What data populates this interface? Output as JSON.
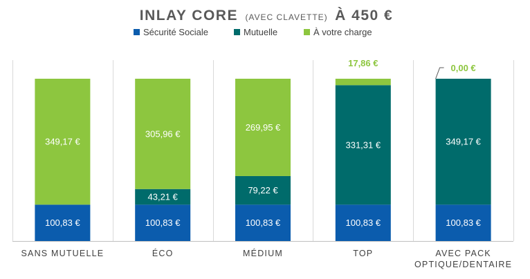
{
  "title": {
    "main": "INLAY CORE",
    "sub": "(AVEC CLAVETTE)",
    "suffix": "À 450 €"
  },
  "colors": {
    "secu": "#0B5CAD",
    "mutuelle": "#006B6B",
    "charge": "#8DC63F",
    "gridline": "#D9D9D9",
    "axis": "#BFBFBF"
  },
  "chart_data": {
    "type": "bar",
    "stacked": true,
    "categories": [
      [
        "SANS MUTUELLE"
      ],
      [
        "ÉCO"
      ],
      [
        "MÉDIUM"
      ],
      [
        "TOP"
      ],
      [
        "AVEC PACK",
        "OPTIQUE/DENTAIRE"
      ]
    ],
    "series": [
      {
        "name": "Sécurité Sociale",
        "values": [
          100.83,
          100.83,
          100.83,
          100.83,
          100.83
        ],
        "labels": [
          "100,83 €",
          "100,83 €",
          "100,83 €",
          "100,83 €",
          "100,83 €"
        ]
      },
      {
        "name": "Mutuelle",
        "values": [
          0,
          43.21,
          79.22,
          331.31,
          349.17
        ],
        "labels": [
          "",
          "43,21 €",
          "79,22 €",
          "331,31 €",
          "349,17 €"
        ]
      },
      {
        "name": "À votre charge",
        "values": [
          349.17,
          305.96,
          269.95,
          17.86,
          0
        ],
        "labels": [
          "349,17 €",
          "305,96 €",
          "269,95 €",
          "17,86 €",
          "0,00 €"
        ]
      }
    ],
    "ylim": [
      0,
      450
    ],
    "grid": "vertical separators",
    "legend": "top"
  }
}
